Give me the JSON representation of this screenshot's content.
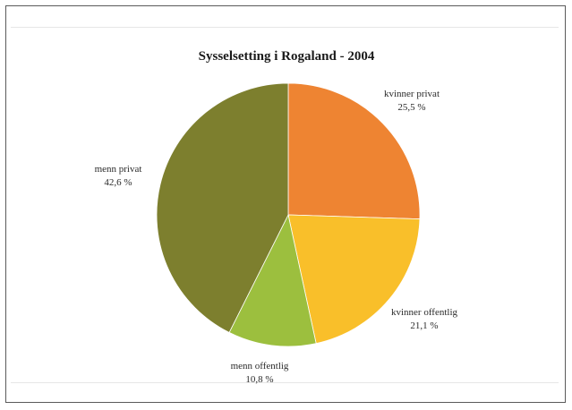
{
  "chart_data": {
    "type": "pie",
    "title": "Sysselsetting i Rogaland - 2004",
    "slices": [
      {
        "name": "kvinner privat",
        "label": "25,5 %",
        "value": 25.5,
        "color": "#EE8432"
      },
      {
        "name": "kvinner offentlig",
        "label": "21,1 %",
        "value": 21.1,
        "color": "#F9BF2A"
      },
      {
        "name": "menn offentlig",
        "label": "10,8 %",
        "value": 10.8,
        "color": "#9CBF3E"
      },
      {
        "name": "menn privat",
        "label": "42,6 %",
        "value": 42.6,
        "color": "#7D7F2E"
      }
    ],
    "start_angle_deg": 0,
    "direction": "clockwise",
    "legend": "none",
    "data_labels": "category name and percentage"
  }
}
